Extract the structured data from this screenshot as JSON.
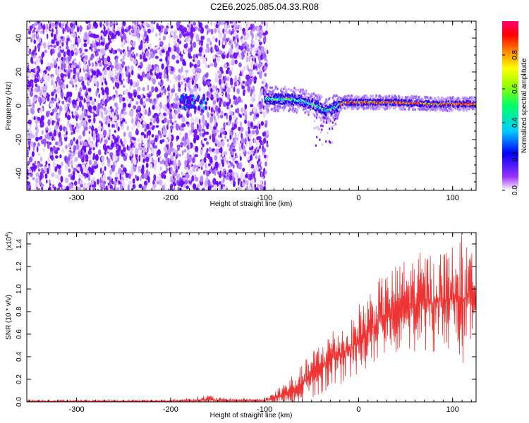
{
  "title": "C2E6.2025.085.04.33.R08",
  "colors": {
    "spectrum_points": "#7a1bff",
    "snr_line": "#ee3333",
    "axis": "#000000"
  },
  "chart_data": [
    {
      "type": "heatmap",
      "name": "spectrogram",
      "xlabel": "Height of straight line (km)",
      "ylabel": "Frequency (Hz)",
      "xlim": [
        -353,
        125
      ],
      "ylim": [
        -50,
        50
      ],
      "xticks": [
        -300,
        -200,
        -100,
        0,
        100
      ],
      "yticks": [
        -40,
        -20,
        0,
        20,
        40
      ],
      "colorbar": {
        "label": "Normalized spectral amplitude",
        "ticks": [
          "0.0",
          "0.2",
          "0.4",
          "0.6",
          "0.8"
        ],
        "range": [
          0,
          1
        ],
        "colormap": [
          "#ffffff",
          "#8000ff",
          "#0000ff",
          "#00ffff",
          "#00ff00",
          "#ffff00",
          "#ff8000",
          "#ff0000",
          "#ff00ff"
        ]
      },
      "noise_region_x": [
        -353,
        -97
      ],
      "signal_track": {
        "x": [
          -100,
          -80,
          -60,
          -45,
          -35,
          -25,
          -15,
          0,
          40,
          80,
          125
        ],
        "frequency": [
          4,
          4,
          3,
          0,
          -3,
          -1,
          2,
          2,
          2,
          1,
          1
        ]
      },
      "grid": false
    },
    {
      "type": "line",
      "name": "snr",
      "xlabel": "Height of straight line (km)",
      "ylabel": "SNR (10 * v/v)",
      "multiplier_label": "(x10",
      "multiplier_exp": "4",
      "multiplier_close": ")",
      "xlim": [
        -353,
        125
      ],
      "ylim": [
        0,
        1.5
      ],
      "xticks": [
        -300,
        -200,
        -100,
        0,
        100
      ],
      "yticks": [
        "0.0",
        "0.2",
        "0.4",
        "0.6",
        "0.8",
        "1.0",
        "1.2",
        "1.4"
      ],
      "series": [
        {
          "x": [
            -353,
            -300,
            -200,
            -170,
            -160,
            -150,
            -100,
            -90,
            -80,
            -70,
            -60,
            -50,
            -40,
            -30,
            -20,
            -10,
            0,
            10,
            20,
            30,
            40,
            50,
            60,
            70,
            80,
            90,
            100,
            110,
            125
          ],
          "y_mean": [
            0.005,
            0.005,
            0.005,
            0.01,
            0.02,
            0.01,
            0.01,
            0.03,
            0.06,
            0.1,
            0.16,
            0.24,
            0.3,
            0.38,
            0.42,
            0.45,
            0.55,
            0.62,
            0.7,
            0.78,
            0.82,
            0.85,
            0.87,
            0.88,
            0.88,
            0.9,
            0.92,
            0.9,
            0.95
          ],
          "y_max": [
            0.02,
            0.02,
            0.02,
            0.05,
            0.07,
            0.04,
            0.03,
            0.1,
            0.18,
            0.25,
            0.33,
            0.45,
            0.55,
            0.65,
            0.7,
            0.68,
            0.88,
            1.0,
            1.08,
            1.15,
            1.22,
            1.28,
            1.3,
            1.35,
            1.32,
            1.38,
            1.4,
            1.49,
            1.25
          ]
        }
      ],
      "grid": false
    }
  ]
}
